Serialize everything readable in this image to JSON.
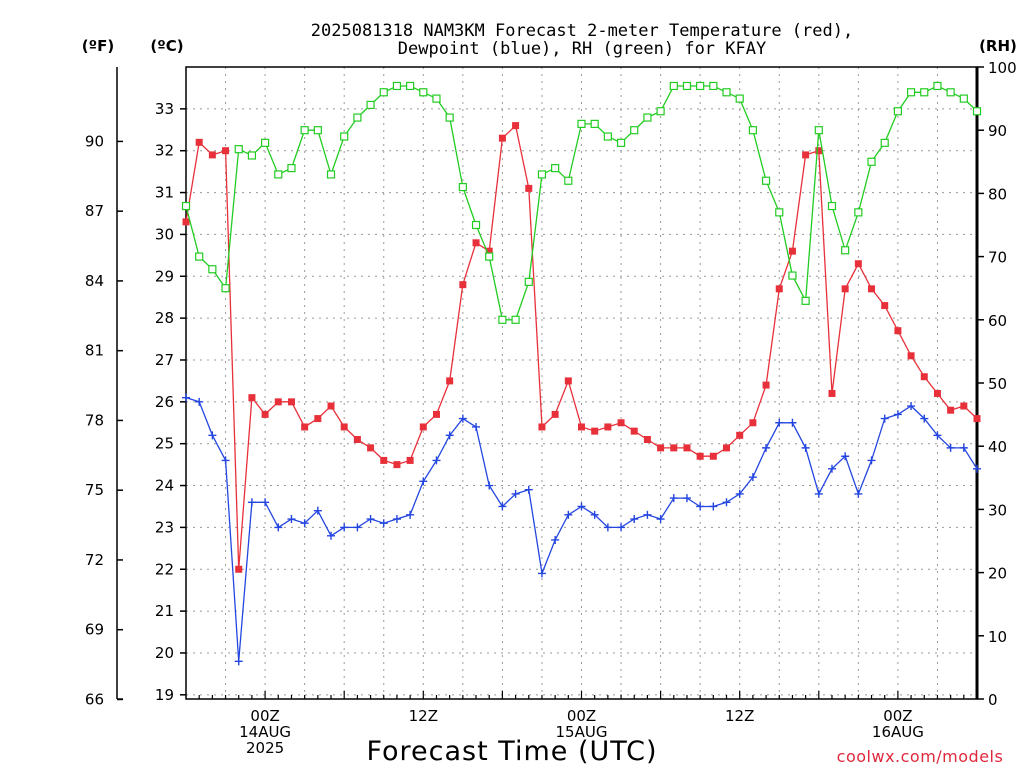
{
  "chart_data": {
    "type": "line",
    "title_lines": [
      "2025081318 NAM3KM Forecast 2-meter Temperature (red),",
      "Dewpoint (blue), RH (green) for KFAY"
    ],
    "xlabel": "Forecast Time (UTC)",
    "credit": "coolwx.com/models",
    "unit_labels": {
      "fahrenheit": "(ºF)",
      "celsius": "(ºC)",
      "rh": "(RH)"
    },
    "x_tick_labels": [
      {
        "hour": 6,
        "lines": [
          "00Z",
          "14AUG",
          "2025"
        ]
      },
      {
        "hour": 18,
        "lines": [
          "12Z"
        ]
      },
      {
        "hour": 30,
        "lines": [
          "00Z",
          "15AUG"
        ]
      },
      {
        "hour": 42,
        "lines": [
          "12Z"
        ]
      },
      {
        "hour": 54,
        "lines": [
          "00Z",
          "16AUG"
        ]
      }
    ],
    "x_range_hours": [
      0,
      60
    ],
    "celsius_ticks": [
      19,
      20,
      21,
      22,
      23,
      24,
      25,
      26,
      27,
      28,
      29,
      30,
      31,
      32,
      33
    ],
    "celsius_range": [
      18.9,
      34.0
    ],
    "fahrenheit_ticks": [
      66,
      69,
      72,
      75,
      78,
      81,
      84,
      87,
      90
    ],
    "rh_ticks": [
      0,
      10,
      20,
      30,
      40,
      50,
      60,
      70,
      80,
      90,
      100
    ],
    "rh_range": [
      0,
      100
    ],
    "grid": true,
    "series": [
      {
        "key": "temperature",
        "color": "#e8303a",
        "marker": "filled-square",
        "axis": "celsius",
        "x": [
          0,
          1,
          2,
          3,
          4,
          5,
          6,
          7,
          8,
          9,
          10,
          11,
          12,
          13,
          14,
          15,
          16,
          17,
          18,
          19,
          20,
          21,
          22,
          23,
          24,
          25,
          26,
          27,
          28,
          29,
          30,
          31,
          32,
          33,
          34,
          35,
          36,
          37,
          38,
          39,
          40,
          41,
          42,
          43,
          44,
          45,
          46,
          47,
          48,
          49,
          50,
          51,
          52,
          53,
          54,
          55,
          56,
          57,
          58,
          59,
          60
        ],
        "values": [
          30.3,
          32.2,
          31.9,
          32.0,
          22.0,
          26.1,
          25.7,
          26.0,
          26.0,
          25.4,
          25.6,
          25.9,
          25.4,
          25.1,
          24.9,
          24.6,
          24.5,
          24.6,
          25.4,
          25.7,
          26.5,
          28.8,
          29.8,
          29.6,
          32.3,
          32.6,
          31.1,
          25.4,
          25.7,
          26.5,
          25.4,
          25.3,
          25.4,
          25.5,
          25.3,
          25.1,
          24.9,
          24.9,
          24.9,
          24.7,
          24.7,
          24.9,
          25.2,
          25.5,
          26.4,
          28.7,
          29.6,
          31.9,
          32.0,
          26.2,
          28.7,
          29.3,
          28.7,
          28.3,
          27.7,
          27.1,
          26.6,
          26.2,
          25.8,
          25.9,
          25.6
        ]
      },
      {
        "key": "dewpoint",
        "color": "#2446e0",
        "marker": "plus",
        "axis": "celsius",
        "x": [
          0,
          1,
          2,
          3,
          4,
          5,
          6,
          7,
          8,
          9,
          10,
          11,
          12,
          13,
          14,
          15,
          16,
          17,
          18,
          19,
          20,
          21,
          22,
          23,
          24,
          25,
          26,
          27,
          28,
          29,
          30,
          31,
          32,
          33,
          34,
          35,
          36,
          37,
          38,
          39,
          40,
          41,
          42,
          43,
          44,
          45,
          46,
          47,
          48,
          49,
          50,
          51,
          52,
          53,
          54,
          55,
          56,
          57,
          58,
          59,
          60
        ],
        "values": [
          26.1,
          26.0,
          25.2,
          24.6,
          19.8,
          23.6,
          23.6,
          23.0,
          23.2,
          23.1,
          23.4,
          22.8,
          23.0,
          23.0,
          23.2,
          23.1,
          23.2,
          23.3,
          24.1,
          24.6,
          25.2,
          25.6,
          25.4,
          24.0,
          23.5,
          23.8,
          23.9,
          21.9,
          22.7,
          23.3,
          23.5,
          23.3,
          23.0,
          23.0,
          23.2,
          23.3,
          23.2,
          23.7,
          23.7,
          23.5,
          23.5,
          23.6,
          23.8,
          24.2,
          24.9,
          25.5,
          25.5,
          24.9,
          23.8,
          24.4,
          24.7,
          23.8,
          24.6,
          25.6,
          25.7,
          25.9,
          25.6,
          25.2,
          24.9,
          24.9,
          24.4
        ]
      },
      {
        "key": "rh",
        "color": "#22cc22",
        "marker": "open-square",
        "axis": "rh",
        "x": [
          0,
          1,
          2,
          3,
          4,
          5,
          6,
          7,
          8,
          9,
          10,
          11,
          12,
          13,
          14,
          15,
          16,
          17,
          18,
          19,
          20,
          21,
          22,
          23,
          24,
          25,
          26,
          27,
          28,
          29,
          30,
          31,
          32,
          33,
          34,
          35,
          36,
          37,
          38,
          39,
          40,
          41,
          42,
          43,
          44,
          45,
          46,
          47,
          48,
          49,
          50,
          51,
          52,
          53,
          54,
          55,
          56,
          57,
          58,
          59,
          60
        ],
        "values": [
          78,
          70,
          68,
          65,
          87,
          86,
          88,
          83,
          84,
          90,
          90,
          83,
          89,
          92,
          94,
          96,
          97,
          97,
          96,
          95,
          92,
          81,
          75,
          70,
          60,
          60,
          66,
          83,
          84,
          82,
          91,
          91,
          89,
          88,
          90,
          92,
          93,
          97,
          97,
          97,
          97,
          96,
          95,
          90,
          82,
          77,
          67,
          63,
          90,
          78,
          71,
          77,
          85,
          88,
          93,
          96,
          96,
          97,
          96,
          95,
          93
        ]
      }
    ]
  }
}
